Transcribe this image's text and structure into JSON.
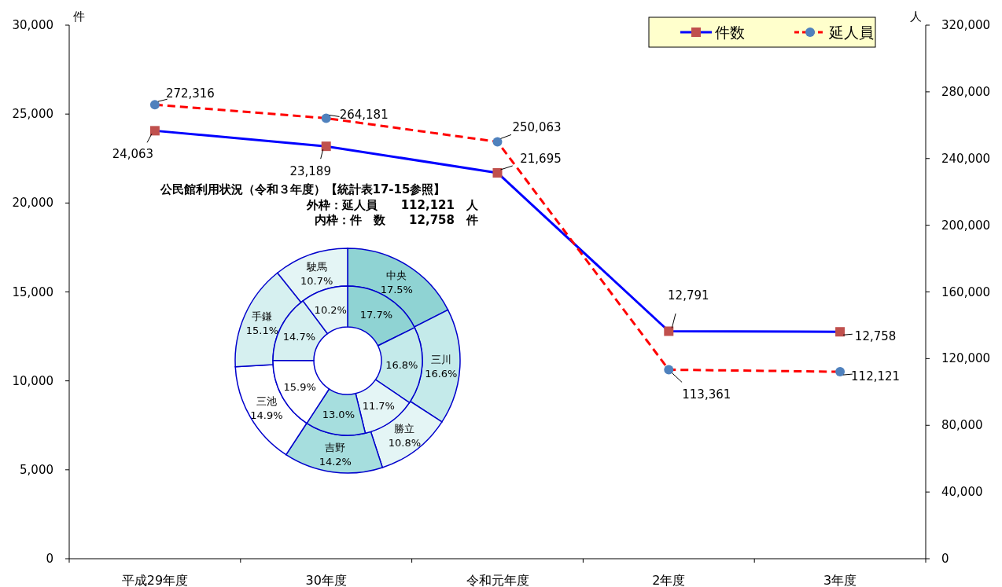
{
  "chart_data": [
    {
      "type": "line",
      "categories": [
        "平成29年度",
        "30年度",
        "令和元年度",
        "2年度",
        "3年度"
      ],
      "ylabel": "件",
      "y2label": "人",
      "ylim": [
        0,
        30000
      ],
      "yticks": [
        {
          "value": 0,
          "label": "0"
        },
        {
          "value": 5000,
          "label": "5,000"
        },
        {
          "value": 10000,
          "label": "10,000"
        },
        {
          "value": 15000,
          "label": "15,000"
        },
        {
          "value": 20000,
          "label": "20,000"
        },
        {
          "value": 25000,
          "label": "25,000"
        },
        {
          "value": 30000,
          "label": "30,000"
        }
      ],
      "y2lim": [
        0,
        320000
      ],
      "y2ticks": [
        {
          "value": 0,
          "label": "0"
        },
        {
          "value": 40000,
          "label": "40,000"
        },
        {
          "value": 80000,
          "label": "80,000"
        },
        {
          "value": 120000,
          "label": "120,000"
        },
        {
          "value": 160000,
          "label": "160,000"
        },
        {
          "value": 200000,
          "label": "200,000"
        },
        {
          "value": 240000,
          "label": "240,000"
        },
        {
          "value": 280000,
          "label": "280,000"
        },
        {
          "value": 320000,
          "label": "320,000"
        }
      ],
      "legend": "top right",
      "series": [
        {
          "name": "件数",
          "color": "#0000ff",
          "colors": [
            "#c0504d",
            "#c0504d",
            "#c0504d",
            "#c0504d",
            "#c0504d"
          ],
          "marker": "square",
          "line_style": "solid",
          "values": [
            24063,
            23189,
            21695,
            12791,
            12758
          ],
          "value_labels": [
            "24,063",
            "23,189",
            "21,695",
            "12,791",
            "12,758"
          ]
        },
        {
          "name": "延人員",
          "color": "#ff0000",
          "colors": [
            "#4f81bd",
            "#4f81bd",
            "#4f81bd",
            "#4f81bd",
            "#4f81bd"
          ],
          "marker": "circle",
          "line_style": "dashed",
          "axis": "y2",
          "values": [
            272316,
            264181,
            250063,
            113361,
            112121
          ],
          "value_labels": [
            "272,316",
            "264,181",
            "250,063",
            "113,361",
            "112,121"
          ]
        }
      ]
    },
    {
      "type": "donut",
      "title": "公民館利用状況（令和３年度）【統計表17-15参照】",
      "annotations": [
        "外枠：延人員　　112,121　人",
        "内枠：件　数　　12,758　件"
      ],
      "categories": [
        "中央",
        "三川",
        "勝立",
        "吉野",
        "三池",
        "手鎌",
        "駛馬"
      ],
      "colors": [
        "#8fd3d3",
        "#c4eaea",
        "#e4f5f5",
        "#a6dede",
        "#ffffff",
        "#d6f0f0",
        "#e4f5f5"
      ],
      "series": [
        {
          "values": [
            17.5,
            16.6,
            10.8,
            14.2,
            14.9,
            15.1,
            10.7
          ],
          "value_labels": [
            "17.5%",
            "16.6%",
            "10.8%",
            "14.2%",
            "14.9%",
            "15.1%",
            "10.7%"
          ]
        },
        {
          "values": [
            17.7,
            16.8,
            11.7,
            13.0,
            15.9,
            14.7,
            10.2
          ],
          "value_labels": [
            "17.7%",
            "16.8%",
            "11.7%",
            "13.0%",
            "15.9%",
            "14.7%",
            "10.2%"
          ]
        }
      ]
    }
  ]
}
